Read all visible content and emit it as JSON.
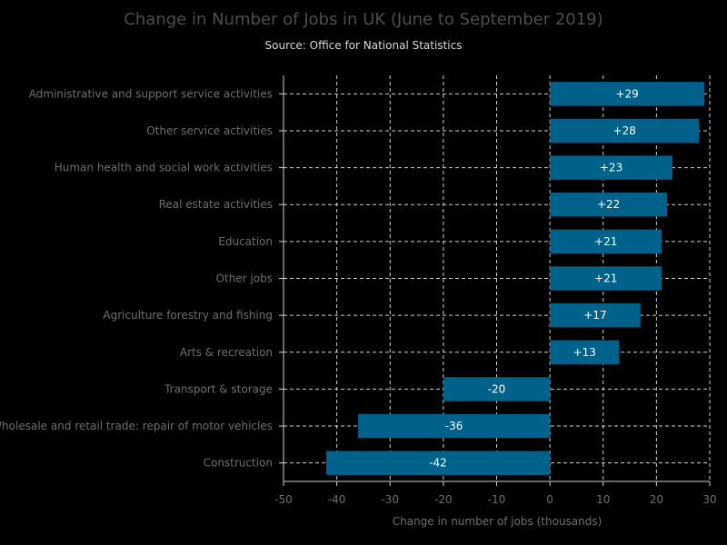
{
  "chart_data": {
    "type": "bar",
    "orientation": "horizontal",
    "title": "Change in Number of Jobs in UK (June to September 2019)",
    "subtitle": "Source: Office for National Statistics",
    "xlabel": "Change in number of jobs (thousands)",
    "ylabel": "",
    "xlim": [
      -50,
      30
    ],
    "xticks": [
      -50,
      -40,
      -30,
      -20,
      -10,
      0,
      10,
      20,
      30
    ],
    "grid": true,
    "bar_color": "#00618a",
    "categories": [
      "Administrative and support service activities",
      "Other service activities",
      "Human health and social work activities",
      "Real estate activities",
      "Education",
      "Other jobs",
      "Agriculture forestry and fishing",
      "Arts & recreation",
      "Transport & storage",
      "Wholesale and retail trade: repair of motor vehicles",
      "Construction"
    ],
    "values": [
      29,
      28,
      23,
      22,
      21,
      21,
      17,
      13,
      -20,
      -36,
      -42
    ],
    "value_labels": [
      "+29",
      "+28",
      "+23",
      "+22",
      "+21",
      "+21",
      "+17",
      "+13",
      "-20",
      "-36",
      "-42"
    ]
  }
}
